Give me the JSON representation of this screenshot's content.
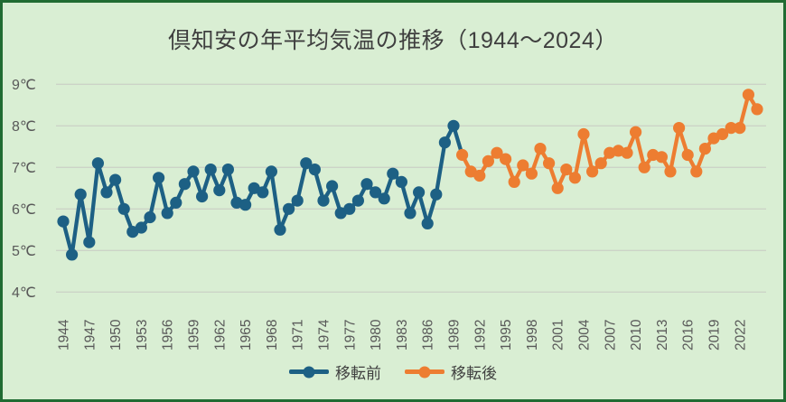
{
  "title": "倶知安の年平均気温の推移（1944～2024）",
  "legend": {
    "before_label": "移転前",
    "after_label": "移転後"
  },
  "colors": {
    "background": "#d9eed3",
    "border": "#206b32",
    "before_series": "#1d6084",
    "after_series": "#ed7d31",
    "gridline": "#ccd3c7",
    "title_text": "#3f3f3f",
    "axis_text": "#595959"
  },
  "chart_data": {
    "type": "line",
    "title": "倶知安の年平均気温の推移（1944～2024）",
    "xlabel": "",
    "ylabel": "",
    "ylim": [
      4,
      9
    ],
    "y_unit": "℃",
    "y_tick_labels": [
      "9℃",
      "8℃",
      "7℃",
      "6℃",
      "5℃",
      "4℃"
    ],
    "y_tick_values": [
      9,
      8,
      7,
      6,
      5,
      4
    ],
    "x_tick_years": [
      1944,
      1947,
      1950,
      1953,
      1956,
      1959,
      1962,
      1965,
      1968,
      1971,
      1974,
      1977,
      1980,
      1983,
      1986,
      1989,
      1992,
      1995,
      1998,
      2001,
      2004,
      2007,
      2010,
      2013,
      2016,
      2019,
      2022
    ],
    "x_range": [
      1944,
      2024
    ],
    "grid": "horizontal",
    "legend_position": "bottom",
    "series": [
      {
        "name": "移転前",
        "color": "#1d6084",
        "start_year": 1944,
        "values": [
          5.7,
          4.9,
          6.35,
          5.2,
          7.1,
          6.4,
          6.7,
          6.0,
          5.45,
          5.55,
          5.8,
          6.75,
          5.9,
          6.15,
          6.6,
          6.9,
          6.3,
          6.95,
          6.45,
          6.95,
          6.15,
          6.1,
          6.5,
          6.4,
          6.9,
          5.5,
          6.0,
          6.2,
          7.1,
          6.95,
          6.2,
          6.55,
          5.9,
          6.0,
          6.2,
          6.6,
          6.4,
          6.25,
          6.85,
          6.65,
          5.9,
          6.4,
          5.65,
          6.35,
          7.6,
          8.0
        ]
      },
      {
        "name": "移転後",
        "color": "#ed7d31",
        "start_year": 1990,
        "values": [
          7.3,
          6.9,
          6.8,
          7.15,
          7.35,
          7.2,
          6.65,
          7.05,
          6.85,
          7.45,
          7.1,
          6.5,
          6.95,
          6.75,
          7.8,
          6.9,
          7.1,
          7.35,
          7.4,
          7.35,
          7.85,
          7.0,
          7.3,
          7.25,
          6.9,
          7.95,
          7.3,
          6.9,
          7.45,
          7.7,
          7.8,
          7.95,
          7.95,
          8.75,
          8.4
        ]
      }
    ]
  }
}
